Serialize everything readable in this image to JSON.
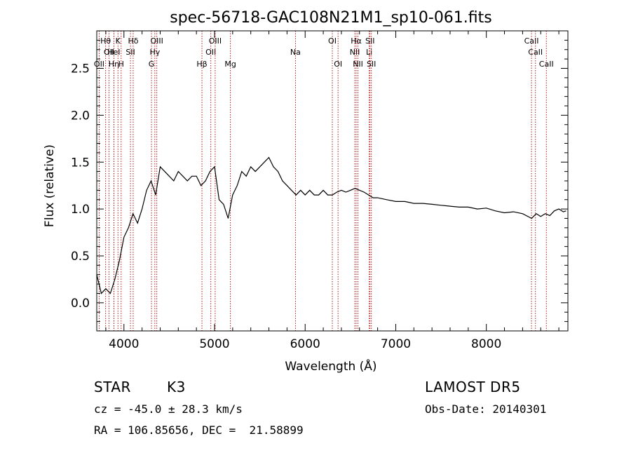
{
  "chart_data": {
    "type": "line",
    "title": "spec-56718-GAC108N21M1_sp10-061.fits",
    "xlabel": "Wavelength (Å)",
    "ylabel": "Flux (relative)",
    "xlim": [
      3700,
      8900
    ],
    "ylim": [
      -0.3,
      2.9
    ],
    "x_ticks": [
      4000,
      5000,
      6000,
      7000,
      8000
    ],
    "x_tick_labels": [
      "4000",
      "5000",
      "6000",
      "7000",
      "8000"
    ],
    "y_ticks": [
      0.0,
      0.5,
      1.0,
      1.5,
      2.0,
      2.5
    ],
    "y_tick_labels": [
      "0.0",
      "0.5",
      "1.0",
      "1.5",
      "2.0",
      "2.5"
    ],
    "grid": false,
    "line_color": "#000000",
    "marker_color": "#aa0000",
    "series": [
      {
        "x": [
          3700,
          3750,
          3800,
          3850,
          3900,
          3950,
          4000,
          4050,
          4100,
          4150,
          4200,
          4250,
          4300,
          4350,
          4400,
          4450,
          4500,
          4550,
          4600,
          4650,
          4700,
          4750,
          4800,
          4850,
          4900,
          4950,
          5000,
          5050,
          5100,
          5150,
          5200,
          5250,
          5300,
          5350,
          5400,
          5450,
          5500,
          5550,
          5600,
          5650,
          5700,
          5750,
          5800,
          5850,
          5900,
          5950,
          6000,
          6050,
          6100,
          6150,
          6200,
          6250,
          6300,
          6350,
          6400,
          6450,
          6500,
          6550,
          6600,
          6650,
          6700,
          6750,
          6800,
          6900,
          7000,
          7100,
          7200,
          7300,
          7400,
          7500,
          7600,
          7700,
          7800,
          7900,
          8000,
          8100,
          8200,
          8300,
          8400,
          8500,
          8550,
          8600,
          8650,
          8700,
          8750,
          8800,
          8850,
          8880
        ],
        "values": [
          0.3,
          0.1,
          0.15,
          0.1,
          0.25,
          0.45,
          0.7,
          0.8,
          0.95,
          0.85,
          1.0,
          1.2,
          1.3,
          1.15,
          1.45,
          1.4,
          1.35,
          1.3,
          1.4,
          1.35,
          1.3,
          1.35,
          1.35,
          1.25,
          1.3,
          1.4,
          1.45,
          1.1,
          1.05,
          0.9,
          1.15,
          1.25,
          1.4,
          1.35,
          1.45,
          1.4,
          1.45,
          1.5,
          1.55,
          1.45,
          1.4,
          1.3,
          1.25,
          1.2,
          1.15,
          1.2,
          1.15,
          1.2,
          1.15,
          1.15,
          1.2,
          1.15,
          1.15,
          1.18,
          1.2,
          1.18,
          1.2,
          1.22,
          1.2,
          1.18,
          1.15,
          1.12,
          1.12,
          1.1,
          1.08,
          1.08,
          1.06,
          1.06,
          1.05,
          1.04,
          1.03,
          1.02,
          1.02,
          1.0,
          1.01,
          0.98,
          0.96,
          0.97,
          0.95,
          0.9,
          0.95,
          0.92,
          0.95,
          0.93,
          0.98,
          1.0,
          0.97,
          0.98
        ]
      }
    ],
    "lines": [
      {
        "x": 3798,
        "label": "Hθ",
        "row": 0
      },
      {
        "x": 3835,
        "label": "OII",
        "row": 1
      },
      {
        "x": 3727,
        "label": "OII",
        "row": 2
      },
      {
        "x": 3889,
        "label": "Hη",
        "row": 2
      },
      {
        "x": 3889,
        "label": "HeI",
        "row": 1
      },
      {
        "x": 3934,
        "label": "K",
        "row": 0
      },
      {
        "x": 3969,
        "label": "H",
        "row": 2
      },
      {
        "x": 4102,
        "label": "Hδ",
        "row": 0
      },
      {
        "x": 4072,
        "label": "SII",
        "row": 1
      },
      {
        "x": 4304,
        "label": "G",
        "row": 2
      },
      {
        "x": 4341,
        "label": "Hγ",
        "row": 1
      },
      {
        "x": 4363,
        "label": "OIII",
        "row": 0
      },
      {
        "x": 4861,
        "label": "Hβ",
        "row": 2
      },
      {
        "x": 4959,
        "label": "OII",
        "row": 1
      },
      {
        "x": 5007,
        "label": "OIII",
        "row": 0
      },
      {
        "x": 5175,
        "label": "Mg",
        "row": 2
      },
      {
        "x": 5893,
        "label": "Na",
        "row": 1
      },
      {
        "x": 6300,
        "label": "OI",
        "row": 0
      },
      {
        "x": 6363,
        "label": "OI",
        "row": 2
      },
      {
        "x": 6548,
        "label": "NII",
        "row": 1
      },
      {
        "x": 6563,
        "label": "Hα",
        "row": 0
      },
      {
        "x": 6583,
        "label": "NII",
        "row": 2
      },
      {
        "x": 6707,
        "label": "Li",
        "row": 1
      },
      {
        "x": 6716,
        "label": "SII",
        "row": 0
      },
      {
        "x": 6731,
        "label": "SII",
        "row": 2
      },
      {
        "x": 8498,
        "label": "CaII",
        "row": 0
      },
      {
        "x": 8542,
        "label": "CaII",
        "row": 1
      },
      {
        "x": 8662,
        "label": "CaII",
        "row": 2
      }
    ]
  },
  "info": {
    "object_class": "STAR",
    "subclass": "K3",
    "survey": "LAMOST DR5",
    "cz": "cz = -45.0 ± 28.3 km/s",
    "obs_date": "Obs-Date: 20140301",
    "coords": "RA = 106.85656, DEC =  21.58899"
  }
}
